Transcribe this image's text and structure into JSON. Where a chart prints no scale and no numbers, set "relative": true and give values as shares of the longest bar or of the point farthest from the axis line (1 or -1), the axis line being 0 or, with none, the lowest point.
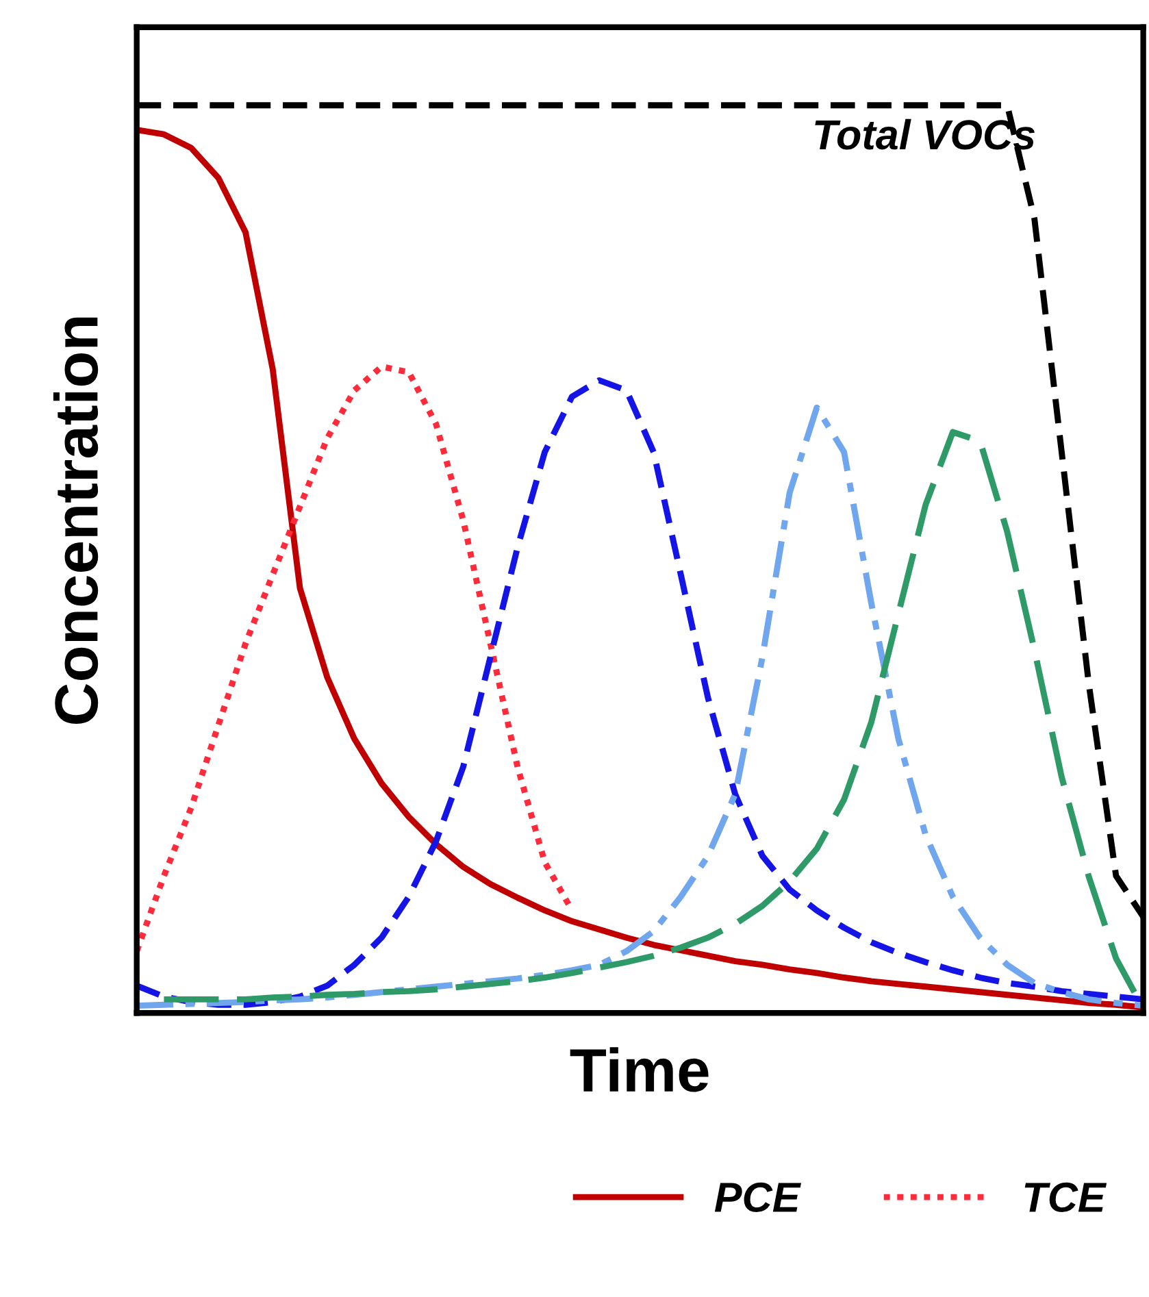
{
  "chart_data": {
    "type": "line",
    "relative": true,
    "xlabel": "Time",
    "ylabel": "Concentration",
    "legend": "bottom",
    "categories": [
      null,
      null,
      null,
      null,
      null,
      null,
      null,
      null,
      null,
      null,
      null,
      null,
      null,
      null,
      null,
      null,
      null,
      null,
      null,
      null,
      null,
      null,
      null,
      null,
      null,
      null,
      null,
      null,
      null,
      null,
      null,
      null,
      null,
      null,
      null,
      null,
      null,
      null
    ],
    "annotations": [
      {
        "text": "Total VOCs",
        "y": 1
      }
    ],
    "series": [
      {
        "name": "PCE",
        "color": "#c00000",
        "line_style": "solid",
        "values": [
          0.973,
          0.968,
          0.953,
          0.92,
          0.86,
          0.709,
          0.468,
          0.37,
          0.302,
          0.253,
          0.216,
          0.186,
          0.161,
          0.142,
          0.127,
          0.113,
          0.101,
          0.092,
          0.083,
          0.075,
          0.069,
          0.063,
          0.057,
          0.053,
          0.048,
          0.044,
          0.039,
          0.035,
          0.032,
          0.029,
          0.026,
          0.023,
          0.02,
          0.017,
          0.014,
          0.011,
          0.009,
          0.006
        ]
      },
      {
        "name": "TCE",
        "color": "#ff2a3a",
        "line_style": "dotted",
        "values": [
          0.068,
          0.151,
          0.226,
          0.317,
          0.407,
          0.483,
          0.558,
          0.633,
          0.686,
          0.712,
          0.706,
          0.649,
          0.543,
          0.407,
          0.271,
          0.166,
          0.113,
          null,
          null,
          null,
          null,
          null,
          null,
          null,
          null,
          null,
          null,
          null,
          null,
          null,
          null,
          null,
          null,
          null,
          null,
          null,
          null,
          null
        ]
      },
      {
        "color": "#1414e6",
        "line_style": "dashed",
        "values": [
          0.03,
          0.018,
          0.012,
          0.009,
          0.009,
          0.012,
          0.018,
          0.03,
          0.053,
          0.083,
          0.128,
          0.189,
          0.271,
          0.392,
          0.513,
          0.618,
          0.679,
          0.697,
          0.686,
          0.618,
          0.483,
          0.347,
          0.241,
          0.173,
          0.136,
          0.113,
          0.094,
          0.078,
          0.066,
          0.056,
          0.047,
          0.039,
          0.033,
          0.029,
          0.024,
          0.021,
          0.018,
          0.015
        ]
      },
      {
        "color": "#6fa6ee",
        "line_style": "dashdot",
        "values": [
          0.008,
          0.009,
          0.01,
          0.011,
          0.012,
          0.014,
          0.015,
          0.017,
          0.02,
          0.023,
          0.026,
          0.029,
          0.032,
          0.035,
          0.038,
          0.042,
          0.047,
          0.053,
          0.068,
          0.09,
          0.128,
          0.173,
          0.241,
          0.392,
          0.573,
          0.667,
          0.618,
          0.452,
          0.302,
          0.196,
          0.128,
          0.083,
          0.053,
          0.033,
          0.023,
          0.015,
          0.011,
          0.008
        ]
      },
      {
        "color": "#2e9a68",
        "line_style": "longdash",
        "values": [
          null,
          0.015,
          0.015,
          0.015,
          0.015,
          0.017,
          0.018,
          0.02,
          0.021,
          0.023,
          0.024,
          0.026,
          0.029,
          0.032,
          0.035,
          0.039,
          0.044,
          0.05,
          0.056,
          0.063,
          0.072,
          0.083,
          0.098,
          0.118,
          0.145,
          0.181,
          0.235,
          0.32,
          0.44,
          0.56,
          0.64,
          0.63,
          0.53,
          0.4,
          0.26,
          0.15,
          0.06,
          0.005
        ]
      },
      {
        "color": "#000000",
        "line_style": "dashed",
        "values": [
          1,
          1,
          1,
          1,
          1,
          1,
          1,
          1,
          1,
          1,
          1,
          1,
          1,
          1,
          1,
          1,
          1,
          1,
          1,
          1,
          1,
          1,
          1,
          1,
          1,
          1,
          1,
          1,
          1,
          1,
          1,
          1,
          1,
          0.875,
          0.618,
          0.362,
          0.151,
          0.106
        ]
      }
    ]
  }
}
